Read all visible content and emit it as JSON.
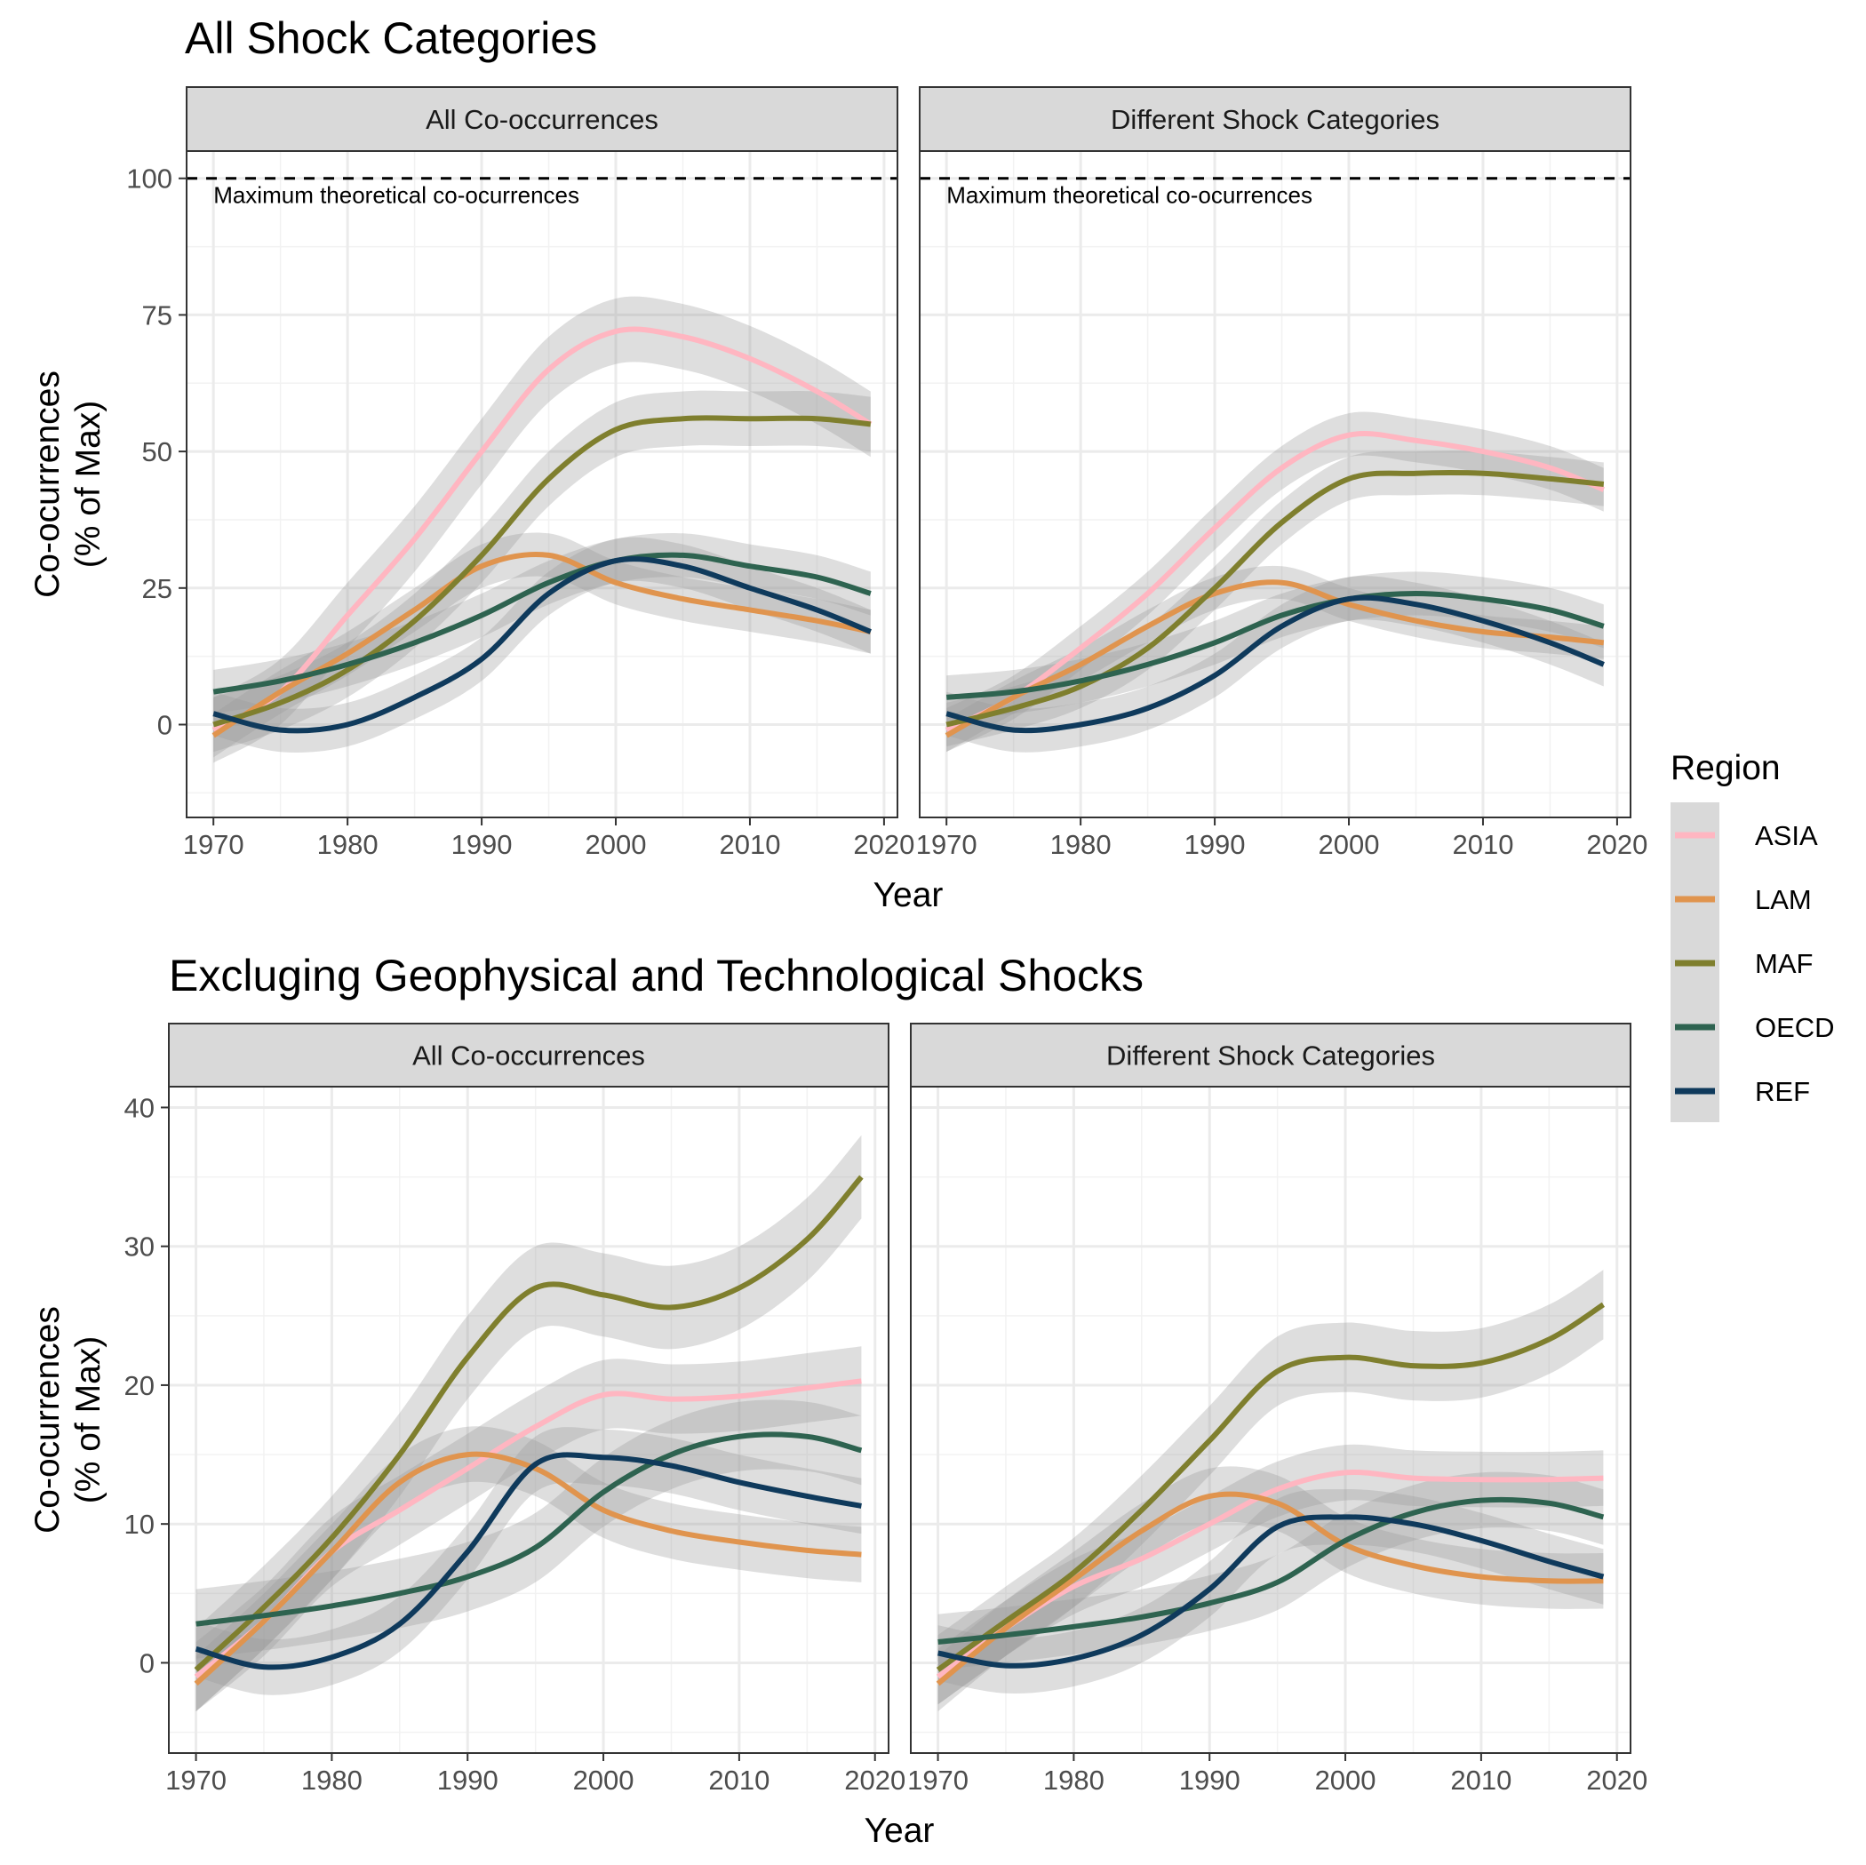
{
  "legend": {
    "title": "Region",
    "items": [
      {
        "label": "ASIA",
        "color": "#FFB6C1"
      },
      {
        "label": "LAM",
        "color": "#E0944E"
      },
      {
        "label": "MAF",
        "color": "#7F7F2E"
      },
      {
        "label": "OECD",
        "color": "#2E6350"
      },
      {
        "label": "REF",
        "color": "#0F3A5C"
      }
    ]
  },
  "chart_data": [
    {
      "type": "line",
      "title": "All Shock Categories",
      "facet": "All Co-occurrences",
      "xlabel": "Year",
      "ylabel": "Co-ocurrences\n(% of Max)",
      "xlim": [
        1968,
        2021
      ],
      "ylim": [
        -17,
        105
      ],
      "xticks": [
        1970,
        1980,
        1990,
        2000,
        2010,
        2020
      ],
      "yticks": [
        0,
        25,
        50,
        75,
        100
      ],
      "grid": true,
      "reference_line": {
        "y": 100,
        "style": "dashed",
        "label": "Maximum theoretical co-ocurrences"
      },
      "x": [
        1970,
        1975,
        1980,
        1985,
        1990,
        1995,
        2000,
        2005,
        2010,
        2015,
        2019
      ],
      "series": [
        {
          "name": "ASIA",
          "values": [
            -1,
            6,
            20,
            34,
            50,
            65,
            72,
            71,
            67,
            61,
            55
          ],
          "band": 6
        },
        {
          "name": "LAM",
          "values": [
            -2,
            6,
            13,
            21,
            29,
            31,
            26,
            23,
            21,
            19,
            17
          ],
          "band": 4
        },
        {
          "name": "MAF",
          "values": [
            0,
            4,
            10,
            19,
            31,
            45,
            54,
            56,
            56,
            56,
            55
          ],
          "band": 5
        },
        {
          "name": "OECD",
          "values": [
            6,
            8,
            11,
            15,
            20,
            26,
            30,
            31,
            29,
            27,
            24
          ],
          "band": 4
        },
        {
          "name": "REF",
          "values": [
            2,
            -1,
            0,
            5,
            12,
            24,
            30,
            29,
            25,
            21,
            17
          ],
          "band": 4
        }
      ]
    },
    {
      "type": "line",
      "title": "",
      "facet": "Different Shock Categories",
      "xlabel": "Year",
      "ylabel": "",
      "xlim": [
        1968,
        2021
      ],
      "ylim": [
        -17,
        105
      ],
      "xticks": [
        1970,
        1980,
        1990,
        2000,
        2010,
        2020
      ],
      "yticks": [
        0,
        25,
        50,
        75,
        100
      ],
      "grid": true,
      "reference_line": {
        "y": 100,
        "style": "dashed",
        "label": "Maximum theoretical co-ocurrences"
      },
      "x": [
        1970,
        1975,
        1980,
        1985,
        1990,
        1995,
        2000,
        2005,
        2010,
        2015,
        2019
      ],
      "series": [
        {
          "name": "ASIA",
          "values": [
            -1,
            5,
            14,
            24,
            36,
            47,
            53,
            52,
            50,
            47,
            43
          ],
          "band": 4
        },
        {
          "name": "LAM",
          "values": [
            -2,
            5,
            11,
            18,
            24,
            26,
            22,
            19,
            17,
            16,
            15
          ],
          "band": 3
        },
        {
          "name": "MAF",
          "values": [
            0,
            3,
            7,
            14,
            25,
            37,
            45,
            46,
            46,
            45,
            44
          ],
          "band": 4
        },
        {
          "name": "OECD",
          "values": [
            5,
            6,
            8,
            11,
            15,
            20,
            23,
            24,
            23,
            21,
            18
          ],
          "band": 4
        },
        {
          "name": "REF",
          "values": [
            2,
            -1,
            0,
            3,
            9,
            18,
            23,
            22,
            19,
            15,
            11
          ],
          "band": 4
        }
      ]
    },
    {
      "type": "line",
      "title": "Excluging Geophysical and Technological Shocks",
      "facet": "All Co-occurrences",
      "xlabel": "Year",
      "ylabel": "Co-ocurrences\n(% of Max)",
      "xlim": [
        1968,
        2021
      ],
      "ylim": [
        -6.5,
        41.5
      ],
      "xticks": [
        1970,
        1980,
        1990,
        2000,
        2010,
        2020
      ],
      "yticks": [
        0,
        10,
        20,
        30,
        40
      ],
      "grid": true,
      "x": [
        1970,
        1975,
        1980,
        1985,
        1990,
        1995,
        2000,
        2005,
        2010,
        2015,
        2019
      ],
      "series": [
        {
          "name": "ASIA",
          "values": [
            -1,
            3,
            8,
            11,
            14,
            17,
            19.3,
            19,
            19.2,
            19.8,
            20.3
          ],
          "band": 2.5
        },
        {
          "name": "LAM",
          "values": [
            -1.5,
            3,
            8,
            13,
            15,
            14,
            11,
            9.5,
            8.7,
            8.1,
            7.8
          ],
          "band": 2
        },
        {
          "name": "MAF",
          "values": [
            -0.5,
            4,
            9,
            15,
            22,
            27,
            26.5,
            25.6,
            27,
            30.5,
            35
          ],
          "band": 3
        },
        {
          "name": "OECD",
          "values": [
            2.8,
            3.4,
            4.1,
            5,
            6.2,
            8.3,
            12.3,
            15,
            16.3,
            16.3,
            15.3
          ],
          "band": 2.5
        },
        {
          "name": "REF",
          "values": [
            1,
            -0.3,
            0.4,
            2.8,
            8,
            14.3,
            14.8,
            14.2,
            13,
            12,
            11.3
          ],
          "band": 2
        }
      ]
    },
    {
      "type": "line",
      "title": "",
      "facet": "Different Shock Categories",
      "xlabel": "Year",
      "ylabel": "",
      "xlim": [
        1968,
        2021
      ],
      "ylim": [
        -6.5,
        41.5
      ],
      "xticks": [
        1970,
        1980,
        1990,
        2000,
        2010,
        2020
      ],
      "yticks": [
        0,
        10,
        20,
        30,
        40
      ],
      "grid": true,
      "x": [
        1970,
        1975,
        1980,
        1985,
        1990,
        1995,
        2000,
        2005,
        2010,
        2015,
        2019
      ],
      "series": [
        {
          "name": "ASIA",
          "values": [
            -1,
            2.5,
            5.5,
            7.5,
            10,
            12.5,
            13.7,
            13.3,
            13.2,
            13.2,
            13.3
          ],
          "band": 2
        },
        {
          "name": "LAM",
          "values": [
            -1.5,
            2.5,
            6,
            9.5,
            12,
            11.5,
            8.5,
            7,
            6.2,
            5.9,
            5.9
          ],
          "band": 2
        },
        {
          "name": "MAF",
          "values": [
            -0.5,
            3,
            6.5,
            11,
            16,
            21,
            22,
            21.4,
            21.6,
            23.3,
            25.8
          ],
          "band": 2.5
        },
        {
          "name": "OECD",
          "values": [
            1.5,
            2,
            2.6,
            3.3,
            4.3,
            5.8,
            8.8,
            10.8,
            11.7,
            11.5,
            10.5
          ],
          "band": 2
        },
        {
          "name": "REF",
          "values": [
            0.7,
            -0.2,
            0.3,
            2,
            5.3,
            9.8,
            10.5,
            10,
            8.8,
            7.3,
            6.2
          ],
          "band": 2
        }
      ]
    }
  ]
}
